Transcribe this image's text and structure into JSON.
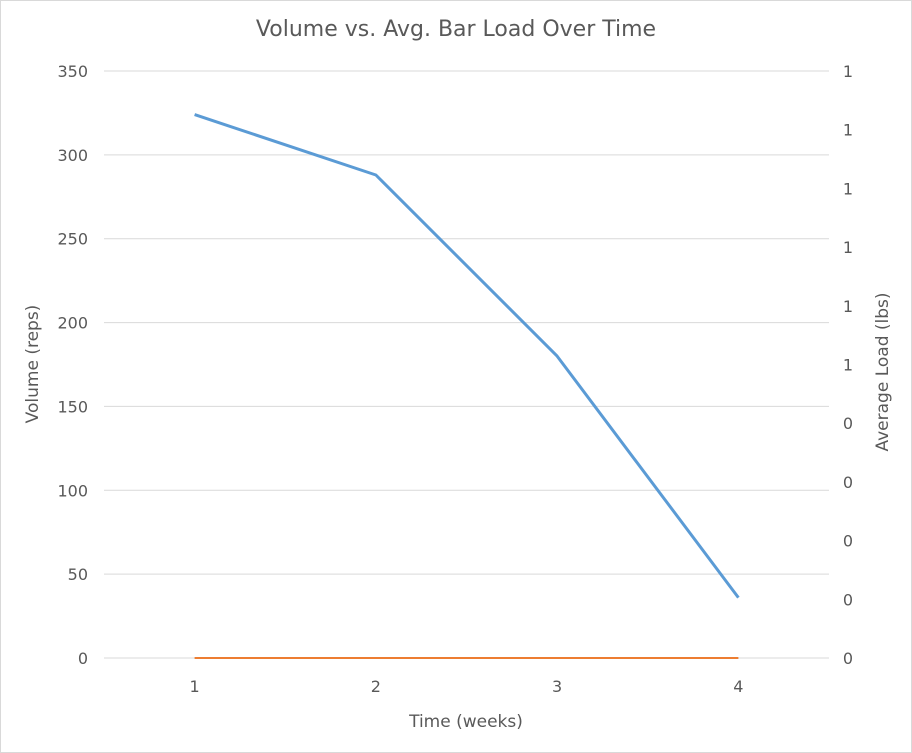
{
  "chart_data": {
    "type": "line",
    "title": "Volume vs. Avg. Bar Load Over Time",
    "xlabel": "Time (weeks)",
    "ylabel": "Volume (reps)",
    "y2label": "Average Load (lbs)",
    "categories": [
      "1",
      "2",
      "3",
      "4"
    ],
    "ylim": [
      0,
      350
    ],
    "yticks": [
      "0",
      "50",
      "100",
      "150",
      "200",
      "250",
      "300",
      "350"
    ],
    "y2ticks": [
      "0",
      "0",
      "0",
      "0",
      "0",
      "1",
      "1",
      "1",
      "1",
      "1",
      "1"
    ],
    "y2lim": [
      0,
      1
    ],
    "grid": true,
    "legend": "none",
    "series": [
      {
        "axis": "left",
        "color": "#5b9bd5",
        "values": [
          324,
          288,
          180,
          36
        ]
      },
      {
        "axis": "right",
        "color": "#ed7d31",
        "values": [
          0,
          0,
          0,
          0
        ]
      }
    ]
  }
}
